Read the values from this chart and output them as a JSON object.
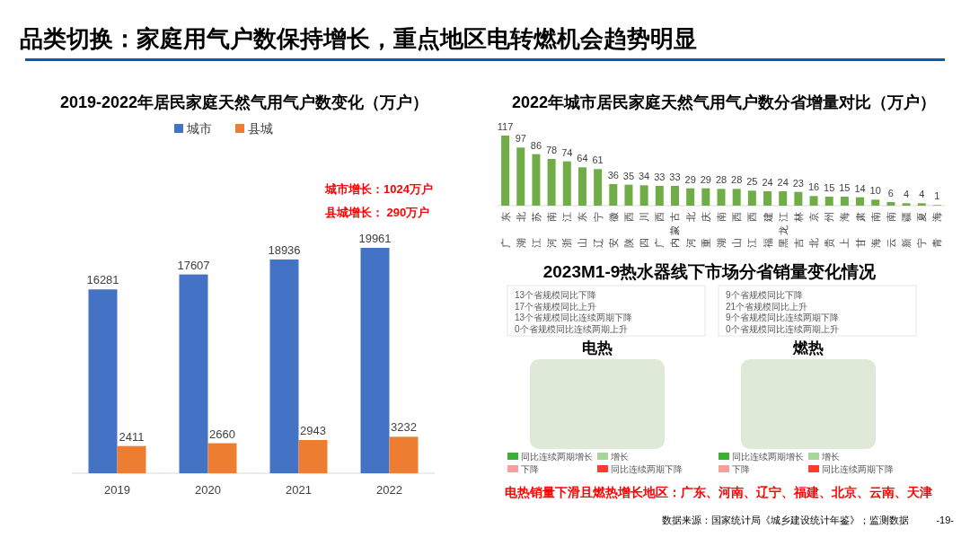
{
  "chart_data": [
    {
      "type": "bar",
      "title": "品类切换：家庭用气户数保持增长，重点地区电转燃机会趋势明显",
      "subtitle": "2019-2022年居民家庭天然气用气户数变化（万户）",
      "categories": [
        "2019",
        "2020",
        "2021",
        "2022"
      ],
      "series": [
        {
          "name": "城市",
          "color": "#4472c4",
          "values": [
            16281,
            17607,
            18936,
            19961
          ]
        },
        {
          "name": "县城",
          "color": "#ed7d31",
          "values": [
            2411,
            2660,
            2943,
            3232
          ]
        }
      ],
      "data_labels": true,
      "legend": "top",
      "annotations": [
        "城市增长：1024万户",
        "县城增长： 290万户"
      ]
    },
    {
      "type": "bar",
      "title": "2022年城市居民家庭天然气用气户数分省增量对比（万户）",
      "categories": [
        "广东",
        "湖北",
        "江苏",
        "河南",
        "浙江",
        "山东",
        "辽宁",
        "安徽",
        "陕西",
        "四川",
        "广西",
        "内蒙古",
        "河北",
        "重庆",
        "湖南",
        "山西",
        "江西",
        "福建",
        "黑龙江",
        "吉林",
        "北京",
        "贵州",
        "上海",
        "甘肃",
        "海南",
        "云南",
        "新疆",
        "宁夏",
        "青海"
      ],
      "values": [
        117,
        97,
        86,
        78,
        74,
        64,
        61,
        36,
        35,
        34,
        33,
        33,
        29,
        29,
        28,
        28,
        25,
        24,
        24,
        23,
        16,
        15,
        15,
        14,
        10,
        6,
        4,
        4,
        1
      ],
      "color": "#70ad47",
      "data_labels": true
    },
    {
      "type": "other",
      "title": "2023M1-9热水器线下市场分省销量变化情况",
      "annotations": [
        "13个省规模同比下降",
        "17个省规模同比上升",
        "13个省规模同比连续两期下降",
        "0个省规模同比连续两期上升",
        "9个省规模同比下降",
        "21个省规模同比上升",
        "9个省规模同比连续两期下降",
        "0个省规模同比连续两期上升",
        "电热",
        "燃热",
        "同比连续两期增长",
        "增长",
        "下降",
        "同比连续两期下降",
        "电热销量下滑且燃热增长地区：广东、河南、辽宁、福建、北京、云南、天津",
        "数据来源：国家统计局《城乡建设统计年鉴》；监测数据",
        "-19-"
      ],
      "colors": [
        "#3daf35",
        "#a9d59c",
        "#f4a19c",
        "#fe3b30"
      ]
    }
  ]
}
